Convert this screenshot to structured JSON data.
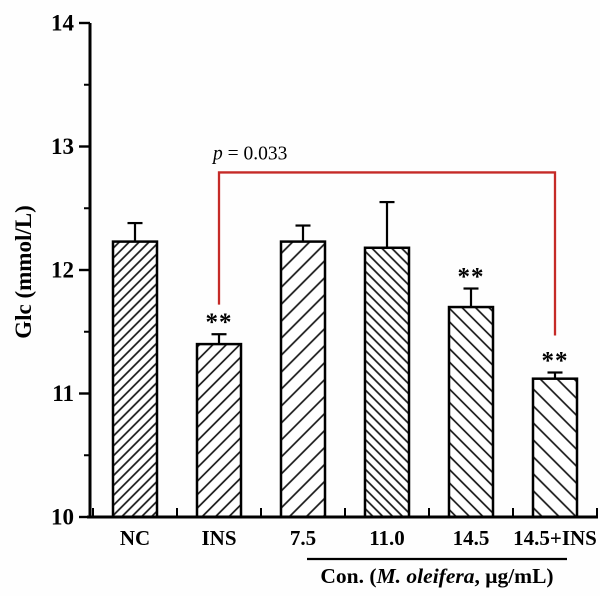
{
  "chart_data": {
    "type": "bar",
    "title": "",
    "ylabel": "Glc (mmol/L)",
    "xlabel": "",
    "ylim": [
      10,
      14
    ],
    "yticks": [
      "10",
      "11",
      "12",
      "13",
      "14"
    ],
    "y_minor_step": 0.5,
    "grid": false,
    "legend": null,
    "categories": [
      "NC",
      "INS",
      "7.5",
      "11.0",
      "14.5",
      "14.5+INS"
    ],
    "bars": [
      {
        "label": "NC",
        "value": 12.23,
        "error": 0.15,
        "sig": "",
        "hatch": "forward",
        "hatch_spacing": 7
      },
      {
        "label": "INS",
        "value": 11.4,
        "error": 0.08,
        "sig": "**",
        "hatch": "forward",
        "hatch_spacing": 9.5
      },
      {
        "label": "7.5",
        "value": 12.23,
        "error": 0.13,
        "sig": "",
        "hatch": "forward",
        "hatch_spacing": 12
      },
      {
        "label": "11.0",
        "value": 12.18,
        "error": 0.37,
        "sig": "",
        "hatch": "backward",
        "hatch_spacing": 7
      },
      {
        "label": "14.5",
        "value": 11.7,
        "error": 0.15,
        "sig": "**",
        "hatch": "backward",
        "hatch_spacing": 9.5
      },
      {
        "label": "14.5+INS",
        "value": 11.12,
        "error": 0.05,
        "sig": "**",
        "hatch": "backward",
        "hatch_spacing": 12
      }
    ],
    "group_axis_label": {
      "prefix": "Con. (",
      "italic_part": "M. oleifera",
      "suffix": ", μg/mL)",
      "applies_to": [
        "7.5",
        "11.0",
        "14.5",
        "14.5+INS"
      ]
    },
    "significance_bracket": {
      "label_p": "p",
      "label_rest": " = 0.033",
      "from": "INS",
      "to": "14.5+INS",
      "y_top": 12.79,
      "y_end_from": 11.72,
      "y_end_to": 11.47
    },
    "colors": {
      "bar_fill": "#ffffff",
      "bar_edge": "#000000",
      "hatch_line": "#161616",
      "text": "#000000",
      "annotation_red": "#c52a27"
    }
  }
}
